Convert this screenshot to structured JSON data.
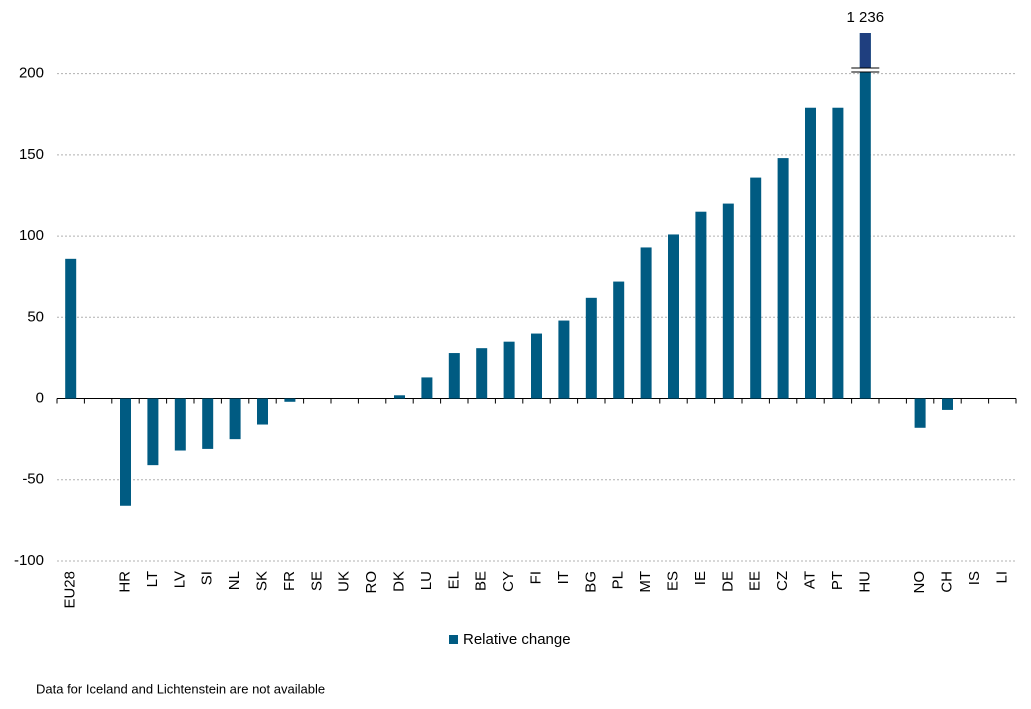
{
  "chart_data": {
    "type": "bar",
    "categories": [
      "EU28",
      null,
      "HR",
      "LT",
      "LV",
      "SI",
      "NL",
      "SK",
      "FR",
      "SE",
      "UK",
      "RO",
      "DK",
      "LU",
      "EL",
      "BE",
      "CY",
      "FI",
      "IT",
      "BG",
      "PL",
      "MT",
      "ES",
      "IE",
      "DE",
      "EE",
      "CZ",
      "AT",
      "PT",
      "HU",
      null,
      "NO",
      "CH",
      "IS",
      "LI"
    ],
    "series": [
      {
        "name": "Relative change",
        "color": "#005b82",
        "values": [
          86,
          null,
          -66,
          -41,
          -32,
          -31,
          -25,
          -16,
          -2,
          0,
          0,
          0,
          2,
          13,
          28,
          31,
          35,
          40,
          48,
          62,
          72,
          93,
          101,
          115,
          120,
          136,
          148,
          179,
          179,
          1236,
          null,
          -18,
          -7,
          null,
          null
        ],
        "value_labels": [
          null,
          null,
          null,
          null,
          null,
          null,
          null,
          null,
          null,
          null,
          null,
          null,
          null,
          null,
          null,
          null,
          null,
          null,
          null,
          null,
          null,
          null,
          null,
          null,
          null,
          null,
          null,
          null,
          null,
          "1 236",
          null,
          null,
          null,
          null,
          null
        ]
      }
    ],
    "ylim": [
      -100,
      225
    ],
    "yticks": [
      -100,
      -50,
      0,
      50,
      100,
      150,
      200
    ],
    "grid": true,
    "legend": "bottom",
    "footnote": "Data for Iceland and Lichtenstein are not available"
  }
}
